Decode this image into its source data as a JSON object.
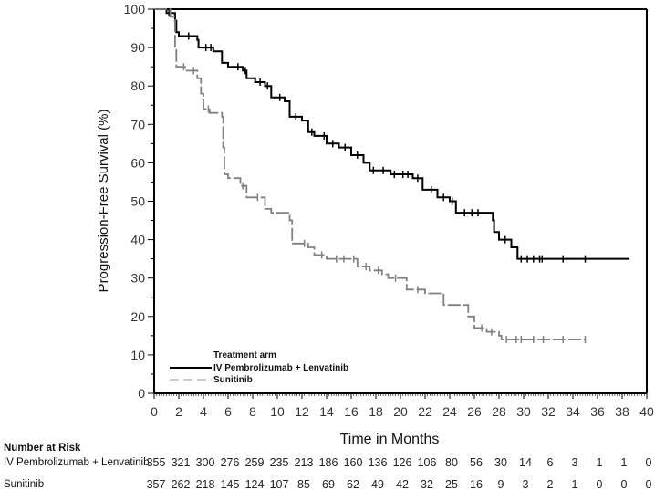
{
  "chart_data": {
    "type": "line",
    "title": "",
    "xlabel": "Time in Months",
    "ylabel": "Progression-Free Survival (%)",
    "xlim": [
      0,
      40
    ],
    "ylim": [
      0,
      100
    ],
    "x_ticks": [
      "0",
      "2",
      "4",
      "6",
      "8",
      "10",
      "12",
      "14",
      "16",
      "18",
      "20",
      "22",
      "24",
      "26",
      "28",
      "30",
      "32",
      "34",
      "36",
      "38",
      "40"
    ],
    "y_ticks": [
      "0",
      "10",
      "20",
      "30",
      "40",
      "50",
      "60",
      "70",
      "80",
      "90",
      "100"
    ],
    "legend": {
      "title": "Treatment arm",
      "placement": "bottom-left",
      "entries": [
        "IV Pembrolizumab + Lenvatinib",
        "Sunitinib"
      ]
    },
    "series": [
      {
        "name": "IV Pembrolizumab + Lenvatinib",
        "color": "#000000",
        "style": "solid",
        "steps": [
          [
            0,
            100
          ],
          [
            1,
            99
          ],
          [
            1.7,
            97
          ],
          [
            1.8,
            94
          ],
          [
            2,
            93
          ],
          [
            3.5,
            92
          ],
          [
            3.6,
            90
          ],
          [
            4.8,
            89
          ],
          [
            5.5,
            86
          ],
          [
            6,
            85
          ],
          [
            7.2,
            84
          ],
          [
            7.5,
            82
          ],
          [
            8.2,
            81
          ],
          [
            9,
            80
          ],
          [
            9.5,
            77
          ],
          [
            10.6,
            76
          ],
          [
            11,
            72
          ],
          [
            12,
            71
          ],
          [
            12.5,
            68
          ],
          [
            13,
            67
          ],
          [
            14,
            65
          ],
          [
            15,
            64
          ],
          [
            16,
            62
          ],
          [
            17,
            60
          ],
          [
            17.5,
            58
          ],
          [
            19.2,
            57
          ],
          [
            21,
            56
          ],
          [
            21.8,
            53
          ],
          [
            23,
            51
          ],
          [
            24,
            50
          ],
          [
            24.5,
            47
          ],
          [
            27.5,
            45
          ],
          [
            27.6,
            42
          ],
          [
            28,
            40
          ],
          [
            29,
            38
          ],
          [
            29.5,
            35
          ],
          [
            38.6,
            35
          ]
        ],
        "censor_months": [
          1.2,
          2.8,
          4.2,
          4.6,
          6.8,
          7.4,
          8.6,
          9.2,
          10.2,
          11.5,
          12.8,
          13.8,
          14.5,
          15.5,
          16.5,
          17.8,
          18.6,
          19.5,
          20.2,
          20.6,
          21.4,
          22.5,
          23.5,
          24.2,
          25.2,
          25.8,
          26.3,
          28.5,
          29.8,
          30.3,
          30.8,
          31.3,
          31.5,
          33.2,
          35
        ],
        "number_at_risk": [
          355,
          321,
          300,
          276,
          259,
          235,
          213,
          186,
          160,
          136,
          126,
          106,
          80,
          56,
          30,
          14,
          6,
          3,
          1,
          1,
          0
        ]
      },
      {
        "name": "Sunitinib",
        "color": "#808080",
        "style": "dashed",
        "steps": [
          [
            0,
            100
          ],
          [
            1.3,
            98
          ],
          [
            1.7,
            90
          ],
          [
            1.8,
            85
          ],
          [
            2.5,
            84
          ],
          [
            3.5,
            82
          ],
          [
            3.8,
            78
          ],
          [
            4,
            74
          ],
          [
            4.5,
            73
          ],
          [
            5.5,
            72
          ],
          [
            5.6,
            64
          ],
          [
            5.7,
            57
          ],
          [
            6,
            56
          ],
          [
            7,
            54
          ],
          [
            7.5,
            51
          ],
          [
            9,
            48
          ],
          [
            9.5,
            47
          ],
          [
            11,
            45
          ],
          [
            11.2,
            39
          ],
          [
            12.5,
            38
          ],
          [
            13,
            36
          ],
          [
            14,
            35
          ],
          [
            16.5,
            33
          ],
          [
            17.5,
            32
          ],
          [
            18.5,
            31
          ],
          [
            19,
            30
          ],
          [
            20.5,
            27
          ],
          [
            22,
            26
          ],
          [
            23.5,
            23
          ],
          [
            25.5,
            20
          ],
          [
            26,
            17
          ],
          [
            27,
            16
          ],
          [
            28,
            15
          ],
          [
            28.2,
            14
          ],
          [
            35,
            14
          ]
        ],
        "censor_months": [
          2.4,
          3.2,
          4.4,
          7.2,
          8.4,
          12.2,
          13.6,
          14.8,
          15.4,
          16.2,
          17.2,
          18.2,
          19.6,
          21.4,
          26.6,
          27.4,
          28.6,
          29.4,
          29.8,
          30.8,
          31.6,
          33.2,
          35
        ],
        "number_at_risk": [
          357,
          262,
          218,
          145,
          124,
          107,
          85,
          69,
          62,
          49,
          42,
          32,
          25,
          16,
          9,
          3,
          2,
          1,
          0,
          0,
          0
        ]
      }
    ]
  },
  "risk_table": {
    "title": "Number at Risk",
    "rows": [
      {
        "label": "IV Pembrolizumab + Lenvatinib",
        "values": [
          "355",
          "321",
          "300",
          "276",
          "259",
          "235",
          "213",
          "186",
          "160",
          "136",
          "126",
          "106",
          "80",
          "56",
          "30",
          "14",
          "6",
          "3",
          "1",
          "1",
          "0"
        ]
      },
      {
        "label": "Sunitinib",
        "values": [
          "357",
          "262",
          "218",
          "145",
          "124",
          "107",
          "85",
          "69",
          "62",
          "49",
          "42",
          "32",
          "25",
          "16",
          "9",
          "3",
          "2",
          "1",
          "0",
          "0",
          "0"
        ]
      }
    ]
  }
}
